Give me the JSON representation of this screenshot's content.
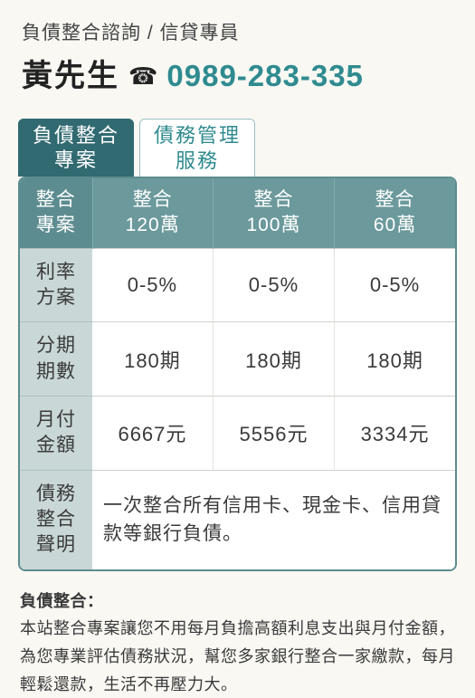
{
  "header": {
    "subtitle": "負債整合諮詢 / 信貸專員",
    "name": "黃先生",
    "phone_icon": "☎",
    "phone": "0989-283-335"
  },
  "tabs": [
    {
      "line1": "負債整合",
      "line2": "專案",
      "active": true
    },
    {
      "line1": "債務管理",
      "line2": "服務",
      "active": false
    }
  ],
  "table": {
    "head": {
      "corner": {
        "line1": "整合",
        "line2": "專案"
      },
      "cols": [
        {
          "line1": "整合",
          "line2": "120萬"
        },
        {
          "line1": "整合",
          "line2": "100萬"
        },
        {
          "line1": "整合",
          "line2": "60萬"
        }
      ]
    },
    "rows": [
      {
        "label_l1": "利率",
        "label_l2": "方案",
        "cells": [
          "0-5%",
          "0-5%",
          "0-5%"
        ]
      },
      {
        "label_l1": "分期",
        "label_l2": "期數",
        "cells": [
          "180期",
          "180期",
          "180期"
        ]
      },
      {
        "label_l1": "月付",
        "label_l2": "金額",
        "cells": [
          "6667元",
          "5556元",
          "3334元"
        ]
      }
    ],
    "statement": {
      "label_l1": "債務",
      "label_l2": "整合",
      "label_l3": "聲明",
      "text": "一次整合所有信用卡、現金卡、信用貸款等銀行負債。"
    }
  },
  "footer": {
    "title": "負債整合：",
    "body": "本站整合專案讓您不用每月負擔高額利息支出與月付金額，為您專業評估債務狀況，幫您多家銀行整合一家繳款，每月輕鬆還款，生活不再壓力大。"
  },
  "colors": {
    "accent": "#2f8b8f",
    "tab_active_bg": "#316a71",
    "thead_bg": "#6b999c",
    "thead_corner_bg": "#5d8c90",
    "rowlabel_bg": "#c9d7d7",
    "page_bg": "#f9f8f3"
  }
}
